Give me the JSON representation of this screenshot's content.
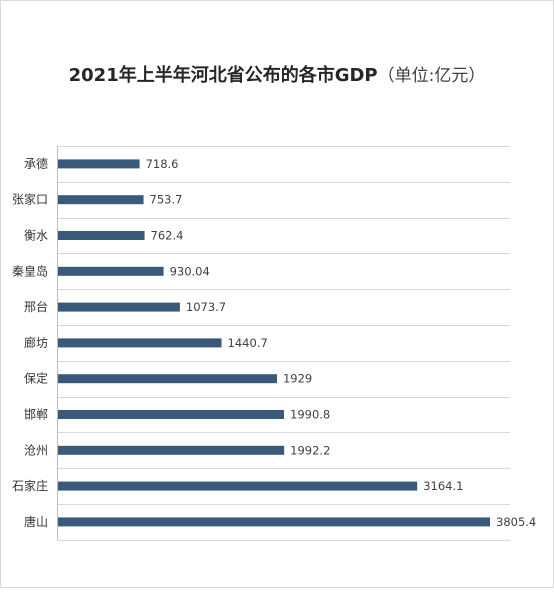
{
  "title": "2021年上半年河北省公布的各市GDP",
  "subtitle": "（单位:亿元）",
  "colors": {
    "bar": "#3a5a7c",
    "grid": "#d9d9d9",
    "axis": "#bfbfbf"
  },
  "chart_data": {
    "type": "bar",
    "orientation": "horizontal",
    "title": "2021年上半年河北省公布的各市GDP（单位:亿元）",
    "categories": [
      "承德",
      "张家口",
      "衡水",
      "秦皇岛",
      "邢台",
      "廊坊",
      "保定",
      "邯郸",
      "沧州",
      "石家庄",
      "唐山"
    ],
    "values": [
      718.6,
      753.7,
      762.4,
      930.04,
      1073.7,
      1440.7,
      1929,
      1990.8,
      1992.2,
      3164.1,
      3805.4
    ],
    "value_labels": [
      "718.6",
      "753.7",
      "762.4",
      "930.04",
      "1073.7",
      "1440.7",
      "1929",
      "1990.8",
      "1992.2",
      "3164.1",
      "3805.4"
    ],
    "xlim": [
      0,
      3800
    ],
    "grid": true,
    "legend": "none"
  }
}
